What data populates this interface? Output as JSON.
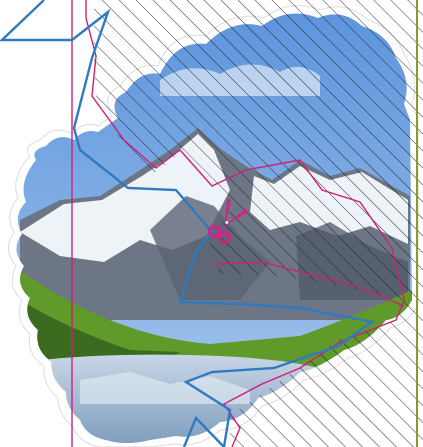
{
  "canvas": {
    "background": "#ffffff",
    "photo_subject": "alpine-lake-with-snowy-mountains"
  },
  "colors": {
    "sky_top": "#5b93dc",
    "sky_bottom": "#a9c9ee",
    "mountain_rock": "#6c7684",
    "mountain_snow": "#eef3f8",
    "meadow_green": "#5f9a2b",
    "meadow_dark": "#3b6b1f",
    "lake": "#9db7d2",
    "torn_edge": "#ffffff",
    "hatch_line": "#1a1a1a",
    "cut_path_blue": "#2f7ac0",
    "guide_magenta": "#d01e7c",
    "border_olive": "#8a9a2a",
    "scissors": "#e01a86"
  },
  "icons": {
    "scissors": "scissors-icon"
  }
}
